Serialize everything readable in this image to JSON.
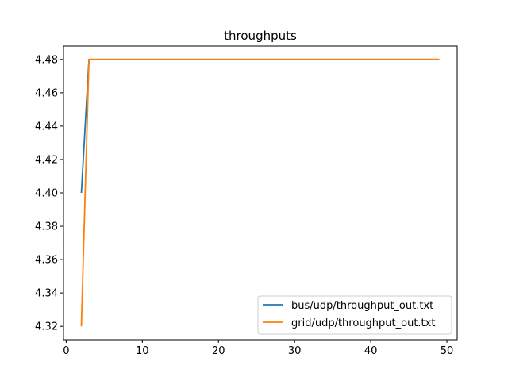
{
  "chart_data": {
    "type": "line",
    "title": "throughputs",
    "xlabel": "",
    "ylabel": "",
    "xlim": [
      -0.35,
      51.35
    ],
    "ylim": [
      4.312,
      4.488
    ],
    "xticks": [
      0,
      10,
      20,
      30,
      40,
      50
    ],
    "yticks": [
      4.32,
      4.34,
      4.36,
      4.38,
      4.4,
      4.42,
      4.44,
      4.46,
      4.48
    ],
    "ytick_labels": [
      "4.32",
      "4.34",
      "4.36",
      "4.38",
      "4.40",
      "4.42",
      "4.44",
      "4.46",
      "4.48"
    ],
    "grid": false,
    "legend_position": "lower-right",
    "series": [
      {
        "name": "bus/udp/throughput_out.txt",
        "color": "#1f77b4",
        "x": [
          2,
          3,
          49
        ],
        "y": [
          4.4,
          4.48,
          4.48
        ]
      },
      {
        "name": "grid/udp/throughput_out.txt",
        "color": "#ff7f0e",
        "x": [
          2,
          3,
          49
        ],
        "y": [
          4.32,
          4.48,
          4.48
        ]
      }
    ]
  }
}
